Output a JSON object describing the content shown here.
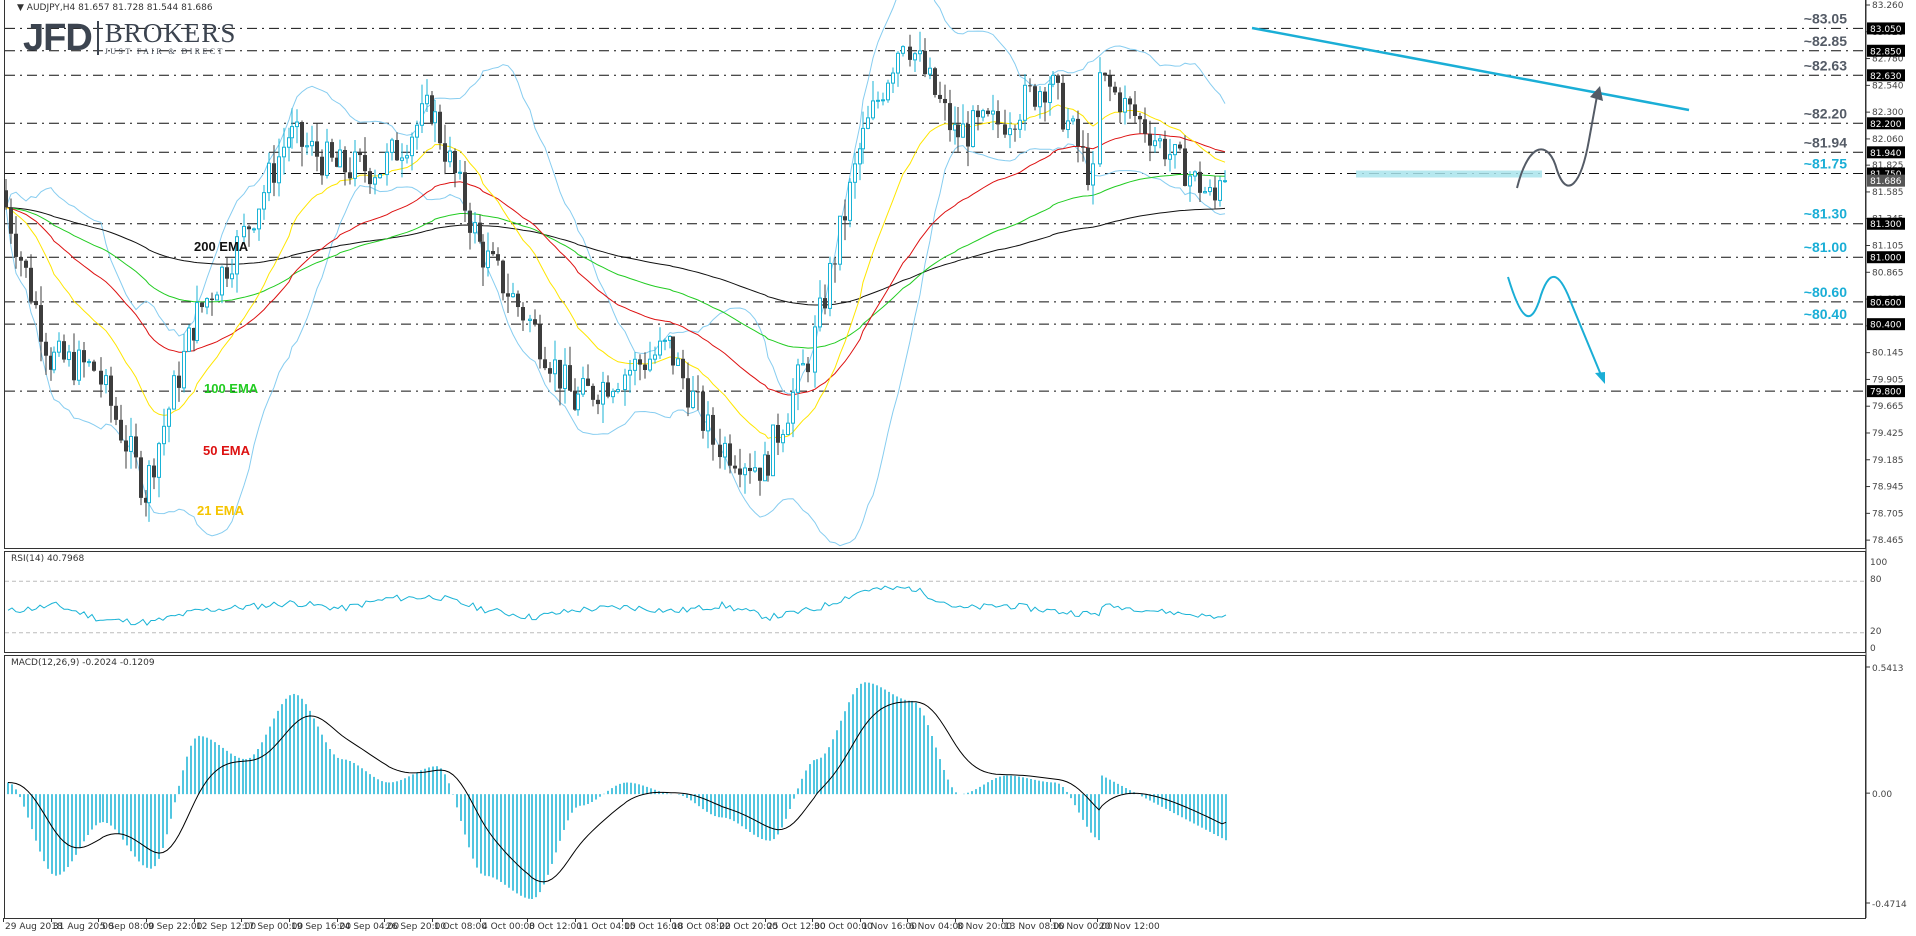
{
  "header": {
    "symbol_info": "AUDJPY,H4  81.657 81.728 81.544 81.686",
    "symbol": "AUDJPY",
    "timeframe": "H4",
    "ohlc": {
      "open": "81.657",
      "high": "81.728",
      "low": "81.544",
      "close": "81.686"
    }
  },
  "logo": {
    "primary": "JFD",
    "secondary": "BROKERS",
    "tagline": "JUST FAIR & DIRECT"
  },
  "price_axis": {
    "ticks": [
      "83.260",
      "83.020",
      "82.780",
      "82.540",
      "82.300",
      "82.060",
      "81.825",
      "81.585",
      "81.345",
      "81.105",
      "80.865",
      "80.625",
      "80.385",
      "80.145",
      "79.905",
      "79.665",
      "79.425",
      "79.185",
      "78.945",
      "78.705",
      "78.465"
    ],
    "tags": [
      {
        "value": "83.050",
        "style": "black"
      },
      {
        "value": "82.850",
        "style": "black"
      },
      {
        "value": "82.630",
        "style": "black"
      },
      {
        "value": "82.200",
        "style": "black"
      },
      {
        "value": "81.940",
        "style": "black"
      },
      {
        "value": "81.750",
        "style": "black"
      },
      {
        "value": "81.686",
        "style": "gray"
      },
      {
        "value": "81.300",
        "style": "black"
      },
      {
        "value": "81.000",
        "style": "black"
      },
      {
        "value": "80.600",
        "style": "black"
      },
      {
        "value": "80.400",
        "style": "black"
      },
      {
        "value": "79.800",
        "style": "black"
      }
    ]
  },
  "levels": [
    {
      "price": 83.05,
      "label": "~83.05",
      "color": "#545b66"
    },
    {
      "price": 82.85,
      "label": "~82.85",
      "color": "#545b66"
    },
    {
      "price": 82.63,
      "label": "~82.63",
      "color": "#545b66"
    },
    {
      "price": 82.2,
      "label": "~82.20",
      "color": "#545b66"
    },
    {
      "price": 81.94,
      "label": "~81.94",
      "color": "#545b66"
    },
    {
      "price": 81.75,
      "label": "~81.75",
      "color": "#1aaed6"
    },
    {
      "price": 81.3,
      "label": "~81.30",
      "color": "#1aaed6"
    },
    {
      "price": 81.0,
      "label": "~81.00",
      "color": "#1aaed6"
    },
    {
      "price": 80.6,
      "label": "~80.60",
      "color": "#1aaed6"
    },
    {
      "price": 80.4,
      "label": "~80.40",
      "color": "#1aaed6"
    },
    {
      "price": 79.8,
      "label": "",
      "color": "#545b66"
    }
  ],
  "ema_labels": {
    "ema200": {
      "text": "200 EMA",
      "color": "#111111"
    },
    "ema100": {
      "text": "100 EMA",
      "color": "#22cc22"
    },
    "ema50": {
      "text": "50 EMA",
      "color": "#dd1111"
    },
    "ema21": {
      "text": "21 EMA",
      "color": "#f5c400"
    }
  },
  "colors": {
    "bull_candle": "#19b3d6",
    "bear_candle": "#3d3d3d",
    "bollinger": "#87cdf0",
    "trendline": "#1aaed6",
    "rsi_line": "#19b3d6",
    "macd_hist": "#19b3d6",
    "macd_signal": "#000000",
    "zone": "#a9e4ec",
    "arrow_up": "#545b66",
    "arrow_down": "#1aaed6"
  },
  "rsi": {
    "title": "RSI(14) 40.7968",
    "levels": [
      "100",
      "80",
      "20",
      "0"
    ]
  },
  "macd": {
    "title": "MACD(12,26,9) -0.2024 -0.1209",
    "levels": [
      "0.5413",
      "0.00",
      "-0.4714"
    ]
  },
  "date_axis": [
    {
      "label": "29 Aug 2018",
      "x": 3
    },
    {
      "label": "31 Aug 20:00",
      "x": 51
    },
    {
      "label": "5 Sep 08:00",
      "x": 98
    },
    {
      "label": "9 Sep 22:00",
      "x": 146
    },
    {
      "label": "12 Sep 12:00",
      "x": 194
    },
    {
      "label": "17 Sep 00:00",
      "x": 241
    },
    {
      "label": "19 Sep 16:00",
      "x": 289
    },
    {
      "label": "24 Sep 04:00",
      "x": 337
    },
    {
      "label": "26 Sep 20:00",
      "x": 384
    },
    {
      "label": "1 Oct 08:00",
      "x": 432
    },
    {
      "label": "4 Oct 00:00",
      "x": 480
    },
    {
      "label": "8 Oct 12:00",
      "x": 703
    },
    {
      "label": "11 Oct 04:00",
      "x": 741
    },
    {
      "label": "15 Oct 16:00",
      "x": 778
    },
    {
      "label": "18 Oct 08:00",
      "x": 815
    },
    {
      "label": "22 Oct 20:00",
      "x": 852
    },
    {
      "label": "25 Oct 12:00",
      "x": 889
    },
    {
      "label": "30 Oct 00:00",
      "x": 927
    },
    {
      "label": "1 Nov 16:00",
      "x": 964
    },
    {
      "label": "6 Nov 04:00",
      "x": 1001
    },
    {
      "label": "8 Nov 20:00",
      "x": 1038
    },
    {
      "label": "13 Nov 08:00",
      "x": 1076
    },
    {
      "label": "16 Nov 00:00",
      "x": 1113
    },
    {
      "label": "20 Nov 12:00",
      "x": 1150
    }
  ],
  "chart_data": [
    {
      "type": "candlestick",
      "title": "AUDJPY,H4",
      "xlabel": "",
      "ylabel": "",
      "ylim": [
        78.465,
        83.26
      ],
      "x_ticks": [
        "29 Aug 2018",
        "31 Aug 20:00",
        "5 Sep 08:00",
        "9 Sep 22:00",
        "12 Sep 12:00",
        "17 Sep 00:00",
        "19 Sep 16:00",
        "24 Sep 04:00",
        "26 Sep 20:00",
        "1 Oct 08:00",
        "4 Oct 00:00",
        "8 Oct 12:00",
        "11 Oct 04:00",
        "15 Oct 16:00",
        "18 Oct 08:00",
        "22 Oct 20:00",
        "25 Oct 12:00",
        "30 Oct 00:00",
        "1 Nov 16:00",
        "6 Nov 04:00",
        "8 Nov 20:00",
        "13 Nov 08:00",
        "16 Nov 00:00",
        "20 Nov 12:00"
      ],
      "y_ticks": [
        "83.260",
        "83.020",
        "82.780",
        "82.540",
        "82.300",
        "82.060",
        "81.825",
        "81.585",
        "81.345",
        "81.105",
        "80.865",
        "80.625",
        "80.385",
        "80.145",
        "79.905",
        "79.665",
        "79.425",
        "79.185",
        "78.945",
        "78.705",
        "78.465"
      ],
      "approx_close_path": {
        "x": [
          "29 Aug 2018",
          "31 Aug 20:00",
          "5 Sep 08:00",
          "9 Sep 22:00",
          "12 Sep 12:00",
          "17 Sep 00:00",
          "19 Sep 16:00",
          "24 Sep 04:00",
          "26 Sep 20:00",
          "1 Oct 08:00",
          "4 Oct 00:00",
          "8 Oct 12:00",
          "11 Oct 04:00",
          "15 Oct 16:00",
          "18 Oct 08:00",
          "22 Oct 20:00",
          "25 Oct 12:00",
          "30 Oct 00:00",
          "1 Nov 16:00",
          "6 Nov 04:00",
          "8 Nov 20:00",
          "13 Nov 08:00",
          "16 Nov 00:00",
          "20 Nov 12:00"
        ],
        "close": [
          81.6,
          80.1,
          80.0,
          78.9,
          80.4,
          81.1,
          82.1,
          81.8,
          81.8,
          82.35,
          81.1,
          80.5,
          79.7,
          79.95,
          80.2,
          79.35,
          79.1,
          80.1,
          81.95,
          83.0,
          82.1,
          82.2,
          82.6,
          81.686
        ]
      },
      "last": {
        "open": 81.657,
        "high": 81.728,
        "low": 81.544,
        "close": 81.686
      },
      "overlays": [
        "21 EMA (yellow)",
        "50 EMA (red)",
        "100 EMA (green)",
        "200 EMA (black)",
        "Bollinger Bands (light blue)"
      ],
      "annotations": [
        {
          "type": "hline",
          "value": 83.05,
          "label": "~83.05"
        },
        {
          "type": "hline",
          "value": 82.85,
          "label": "~82.85"
        },
        {
          "type": "hline",
          "value": 82.63,
          "label": "~82.63"
        },
        {
          "type": "hline",
          "value": 82.2,
          "label": "~82.20"
        },
        {
          "type": "hline",
          "value": 81.94,
          "label": "~81.94"
        },
        {
          "type": "hline",
          "value": 81.75,
          "label": "~81.75"
        },
        {
          "type": "hline",
          "value": 81.3,
          "label": "~81.30"
        },
        {
          "type": "hline",
          "value": 81.0,
          "label": "~81.00"
        },
        {
          "type": "hline",
          "value": 80.6,
          "label": "~80.60"
        },
        {
          "type": "hline",
          "value": 80.4,
          "label": "~80.40"
        },
        {
          "type": "hline",
          "value": 79.8,
          "label": ""
        },
        {
          "type": "trendline",
          "from": {
            "x": "6 Nov 04:00",
            "y": 83.08
          },
          "to": {
            "x": "after 20 Nov 12:00",
            "y": 82.5
          },
          "color": "#1aaed6"
        },
        {
          "type": "zone",
          "value": 81.75,
          "color": "#a9e4ec"
        },
        {
          "type": "arrow",
          "direction": "up",
          "from": 81.94,
          "to": 82.63,
          "color": "#545b66"
        },
        {
          "type": "arrow",
          "direction": "down",
          "from": 81.3,
          "to": 80.6,
          "color": "#1aaed6"
        }
      ],
      "grid": false
    },
    {
      "type": "line",
      "title": "RSI(14) 40.7968",
      "ylim": [
        0,
        100
      ],
      "y_ticks": [
        "100",
        "80",
        "20",
        "0"
      ],
      "reference_lines": [
        80,
        20
      ],
      "last_value": 40.7968,
      "approx_values": [
        45,
        52,
        35,
        32,
        46,
        50,
        55,
        48,
        60,
        62,
        47,
        38,
        47,
        50,
        45,
        52,
        38,
        48,
        70,
        72,
        48,
        52,
        45,
        40.8
      ]
    },
    {
      "type": "bar+line",
      "title": "MACD(12,26,9) -0.2024 -0.1209",
      "ylim": [
        -0.4714,
        0.5413
      ],
      "y_ticks": [
        "0.5413",
        "0.00",
        "-0.4714"
      ],
      "series": [
        {
          "name": "MACD histogram",
          "last": -0.2024
        },
        {
          "name": "Signal",
          "last": -0.1209
        }
      ],
      "approx_hist": [
        0.05,
        -0.35,
        -0.12,
        -0.32,
        0.25,
        0.15,
        0.43,
        0.15,
        0.05,
        0.12,
        -0.35,
        -0.45,
        -0.05,
        0.05,
        0.0,
        -0.1,
        -0.2,
        0.15,
        0.48,
        0.4,
        0.0,
        0.08,
        0.05,
        -0.2
      ]
    }
  ]
}
